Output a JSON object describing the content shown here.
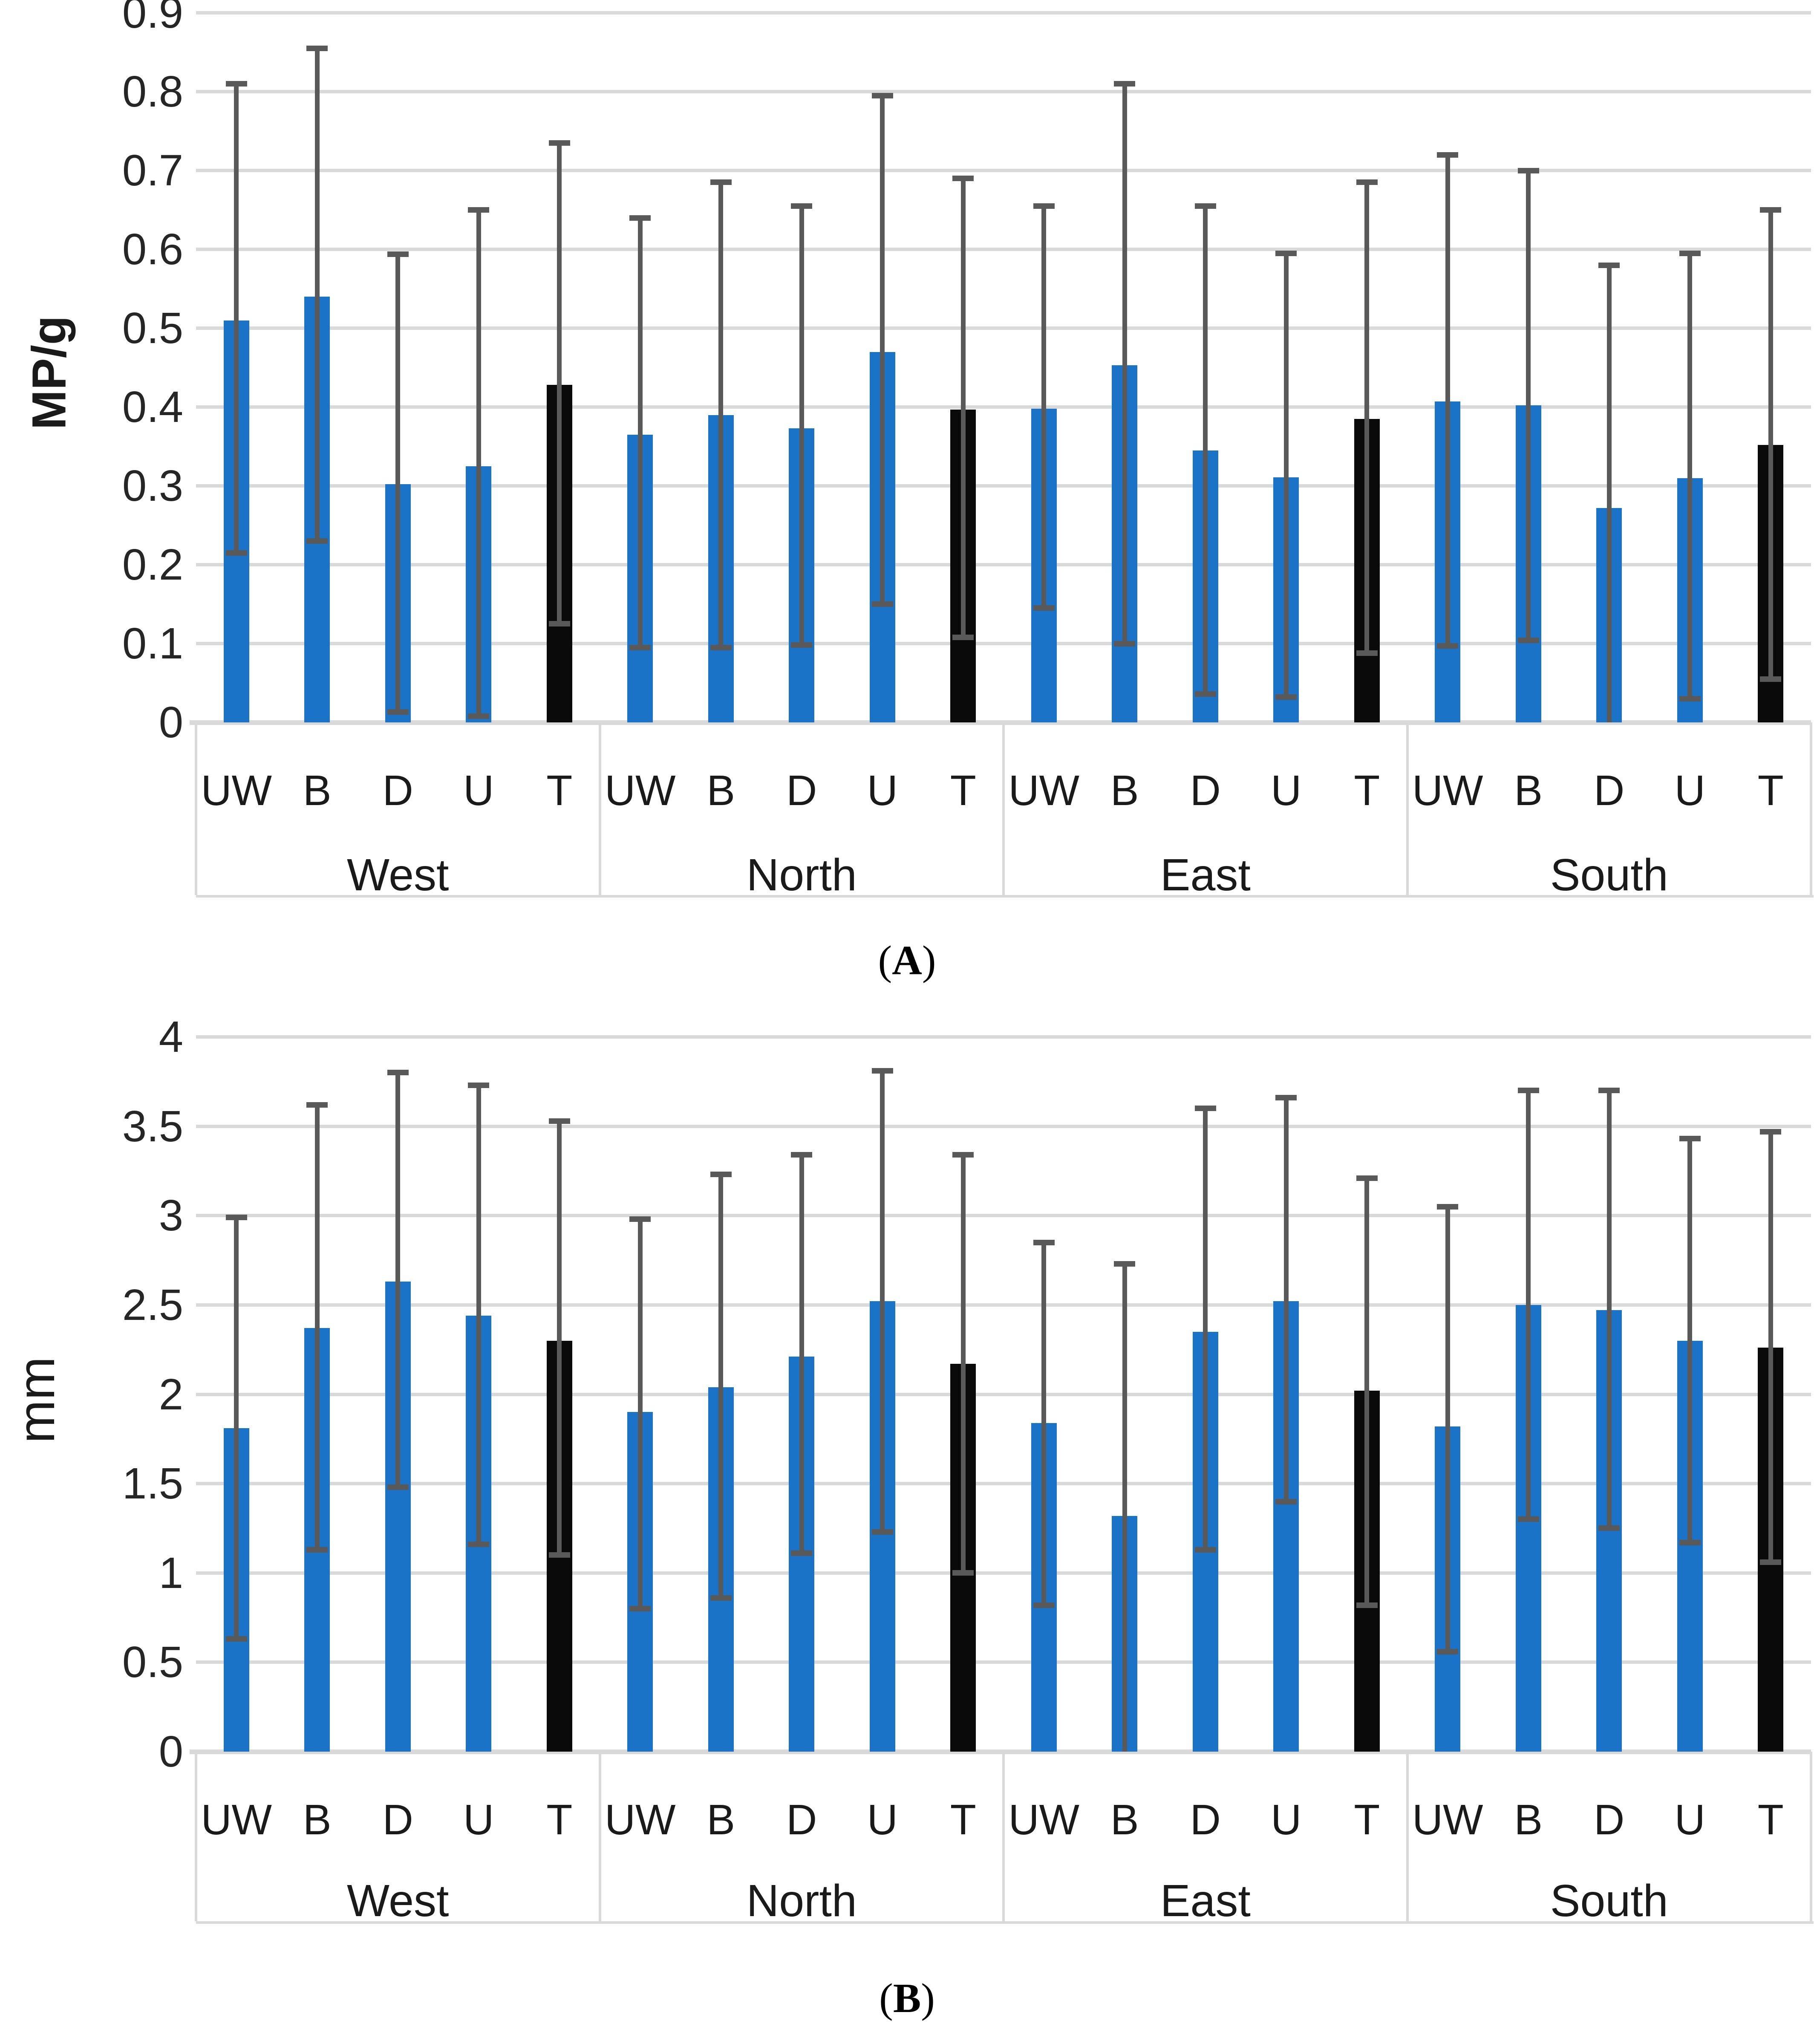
{
  "figure": {
    "captions": {
      "a": {
        "open": "(",
        "letter": "A",
        "close": ")"
      },
      "b": {
        "open": "(",
        "letter": "B",
        "close": ")"
      }
    }
  },
  "colors": {
    "bar_blue": "#1b73c7",
    "bar_black": "#0a0a0a",
    "error_bar": "#595959",
    "gridline": "#d9d9d9",
    "text": "#1a1a1a"
  },
  "chart_data": [
    {
      "id": "a",
      "type": "bar",
      "title": "",
      "xlabel": "",
      "ylabel": "MP/g",
      "ylim": [
        0,
        0.9
      ],
      "grid": true,
      "legend_position": "none",
      "error_bars": true,
      "y_ticks": [
        {
          "label": "0.9",
          "value": 0.9
        },
        {
          "label": "0.8",
          "value": 0.8
        },
        {
          "label": "0.7",
          "value": 0.7
        },
        {
          "label": "0.6",
          "value": 0.6
        },
        {
          "label": "0.5",
          "value": 0.5
        },
        {
          "label": "0.4",
          "value": 0.4
        },
        {
          "label": "0.3",
          "value": 0.3
        },
        {
          "label": "0.2",
          "value": 0.2
        },
        {
          "label": "0.1",
          "value": 0.1
        },
        {
          "label": "0",
          "value": 0
        }
      ],
      "categories": [
        "UW",
        "B",
        "D",
        "U",
        "T"
      ],
      "groups": [
        {
          "label": "West",
          "bars": [
            {
              "category": "UW",
              "value": 0.51,
              "err_lo": 0.215,
              "err_hi": 0.81,
              "color": "blue"
            },
            {
              "category": "B",
              "value": 0.54,
              "err_lo": 0.23,
              "err_hi": 0.855,
              "color": "blue"
            },
            {
              "category": "D",
              "value": 0.302,
              "err_lo": 0.013,
              "err_hi": 0.594,
              "color": "blue"
            },
            {
              "category": "U",
              "value": 0.325,
              "err_lo": 0.008,
              "err_hi": 0.65,
              "color": "blue"
            },
            {
              "category": "T",
              "value": 0.428,
              "err_lo": 0.125,
              "err_hi": 0.735,
              "color": "black"
            }
          ]
        },
        {
          "label": "North",
          "bars": [
            {
              "category": "UW",
              "value": 0.365,
              "err_lo": 0.095,
              "err_hi": 0.64,
              "color": "blue"
            },
            {
              "category": "B",
              "value": 0.39,
              "err_lo": 0.095,
              "err_hi": 0.685,
              "color": "blue"
            },
            {
              "category": "D",
              "value": 0.373,
              "err_lo": 0.098,
              "err_hi": 0.655,
              "color": "blue"
            },
            {
              "category": "U",
              "value": 0.47,
              "err_lo": 0.15,
              "err_hi": 0.795,
              "color": "blue"
            },
            {
              "category": "T",
              "value": 0.397,
              "err_lo": 0.108,
              "err_hi": 0.69,
              "color": "black"
            }
          ]
        },
        {
          "label": "East",
          "bars": [
            {
              "category": "UW",
              "value": 0.398,
              "err_lo": 0.145,
              "err_hi": 0.655,
              "color": "blue"
            },
            {
              "category": "B",
              "value": 0.453,
              "err_lo": 0.1,
              "err_hi": 0.81,
              "color": "blue"
            },
            {
              "category": "D",
              "value": 0.345,
              "err_lo": 0.036,
              "err_hi": 0.655,
              "color": "blue"
            },
            {
              "category": "U",
              "value": 0.311,
              "err_lo": 0.032,
              "err_hi": 0.595,
              "color": "blue"
            },
            {
              "category": "T",
              "value": 0.385,
              "err_lo": 0.088,
              "err_hi": 0.685,
              "color": "black"
            }
          ]
        },
        {
          "label": "South",
          "bars": [
            {
              "category": "UW",
              "value": 0.407,
              "err_lo": 0.097,
              "err_hi": 0.72,
              "color": "blue"
            },
            {
              "category": "B",
              "value": 0.402,
              "err_lo": 0.104,
              "err_hi": 0.7,
              "color": "blue"
            },
            {
              "category": "D",
              "value": 0.272,
              "err_lo": null,
              "err_hi": 0.58,
              "color": "blue"
            },
            {
              "category": "U",
              "value": 0.31,
              "err_lo": 0.03,
              "err_hi": 0.595,
              "color": "blue"
            },
            {
              "category": "T",
              "value": 0.352,
              "err_lo": 0.055,
              "err_hi": 0.65,
              "color": "black"
            }
          ]
        }
      ]
    },
    {
      "id": "b",
      "type": "bar",
      "title": "",
      "xlabel": "",
      "ylabel": "mm",
      "ylim": [
        0,
        4
      ],
      "grid": true,
      "legend_position": "none",
      "error_bars": true,
      "y_ticks": [
        {
          "label": "4",
          "value": 4
        },
        {
          "label": "3.5",
          "value": 3.5
        },
        {
          "label": "3",
          "value": 3
        },
        {
          "label": "2.5",
          "value": 2.5
        },
        {
          "label": "2",
          "value": 2
        },
        {
          "label": "1.5",
          "value": 1.5
        },
        {
          "label": "1",
          "value": 1
        },
        {
          "label": "0.5",
          "value": 0.5
        },
        {
          "label": "0",
          "value": 0
        }
      ],
      "categories": [
        "UW",
        "B",
        "D",
        "U",
        "T"
      ],
      "groups": [
        {
          "label": "West",
          "bars": [
            {
              "category": "UW",
              "value": 1.81,
              "err_lo": 0.63,
              "err_hi": 2.99,
              "color": "blue"
            },
            {
              "category": "B",
              "value": 2.37,
              "err_lo": 1.13,
              "err_hi": 3.62,
              "color": "blue"
            },
            {
              "category": "D",
              "value": 2.63,
              "err_lo": 1.48,
              "err_hi": 3.8,
              "color": "blue"
            },
            {
              "category": "U",
              "value": 2.44,
              "err_lo": 1.16,
              "err_hi": 3.73,
              "color": "blue"
            },
            {
              "category": "T",
              "value": 2.3,
              "err_lo": 1.1,
              "err_hi": 3.53,
              "color": "black"
            }
          ]
        },
        {
          "label": "North",
          "bars": [
            {
              "category": "UW",
              "value": 1.9,
              "err_lo": 0.8,
              "err_hi": 2.98,
              "color": "blue"
            },
            {
              "category": "B",
              "value": 2.04,
              "err_lo": 0.86,
              "err_hi": 3.23,
              "color": "blue"
            },
            {
              "category": "D",
              "value": 2.21,
              "err_lo": 1.11,
              "err_hi": 3.34,
              "color": "blue"
            },
            {
              "category": "U",
              "value": 2.52,
              "err_lo": 1.23,
              "err_hi": 3.81,
              "color": "blue"
            },
            {
              "category": "T",
              "value": 2.17,
              "err_lo": 1.0,
              "err_hi": 3.34,
              "color": "black"
            }
          ]
        },
        {
          "label": "East",
          "bars": [
            {
              "category": "UW",
              "value": 1.84,
              "err_lo": 0.82,
              "err_hi": 2.85,
              "color": "blue"
            },
            {
              "category": "B",
              "value": 1.32,
              "err_lo": null,
              "err_hi": 2.73,
              "color": "blue"
            },
            {
              "category": "D",
              "value": 2.35,
              "err_lo": 1.13,
              "err_hi": 3.6,
              "color": "blue"
            },
            {
              "category": "U",
              "value": 2.52,
              "err_lo": 1.4,
              "err_hi": 3.66,
              "color": "blue"
            },
            {
              "category": "T",
              "value": 2.02,
              "err_lo": 0.82,
              "err_hi": 3.21,
              "color": "black"
            }
          ]
        },
        {
          "label": "South",
          "bars": [
            {
              "category": "UW",
              "value": 1.82,
              "err_lo": 0.56,
              "err_hi": 3.05,
              "color": "blue"
            },
            {
              "category": "B",
              "value": 2.5,
              "err_lo": 1.3,
              "err_hi": 3.7,
              "color": "blue"
            },
            {
              "category": "D",
              "value": 2.47,
              "err_lo": 1.25,
              "err_hi": 3.7,
              "color": "blue"
            },
            {
              "category": "U",
              "value": 2.3,
              "err_lo": 1.17,
              "err_hi": 3.43,
              "color": "blue"
            },
            {
              "category": "T",
              "value": 2.26,
              "err_lo": 1.06,
              "err_hi": 3.47,
              "color": "black"
            }
          ]
        }
      ]
    }
  ]
}
